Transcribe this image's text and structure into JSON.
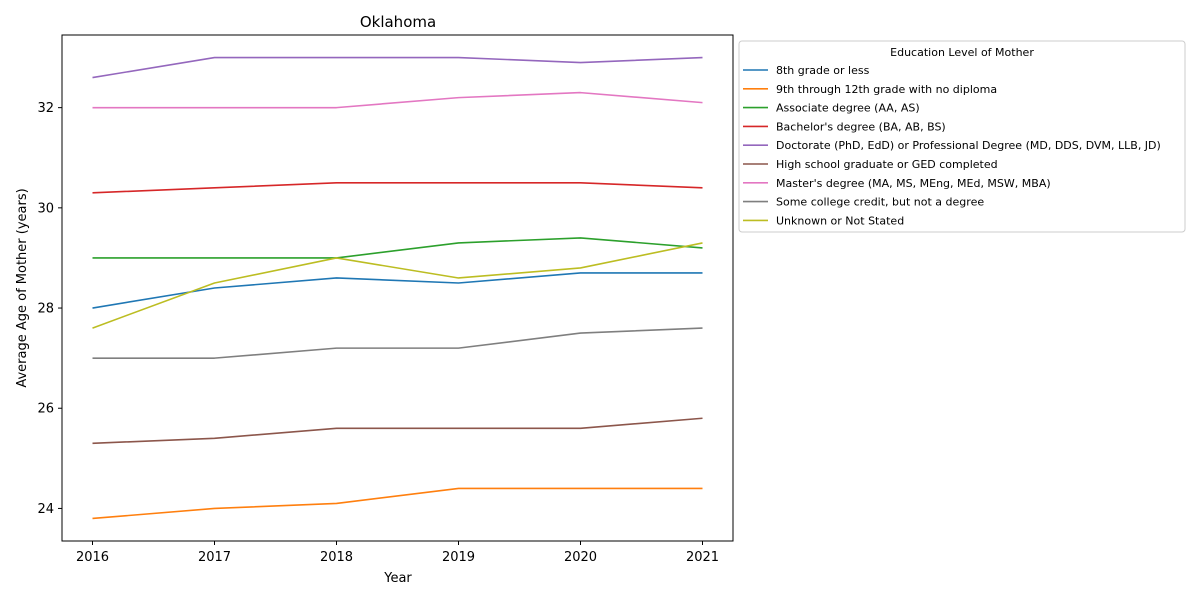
{
  "chart_data": {
    "type": "line",
    "title": "Oklahoma",
    "xlabel": "Year",
    "ylabel": "Average Age of Mother (years)",
    "x": [
      2016,
      2017,
      2018,
      2019,
      2020,
      2021
    ],
    "xticks": [
      "2016",
      "2017",
      "2018",
      "2019",
      "2020",
      "2021"
    ],
    "yticks": [
      "24",
      "26",
      "28",
      "30",
      "32"
    ],
    "ylim": [
      23.35,
      33.45
    ],
    "grid": false,
    "legend": {
      "title": "Education Level of Mother",
      "placement": "outside-right-top"
    },
    "series": [
      {
        "name": "8th grade or less",
        "color": "#1f77b4",
        "values": [
          28.0,
          28.4,
          28.6,
          28.5,
          28.7,
          28.7
        ]
      },
      {
        "name": "9th through 12th grade with no diploma",
        "color": "#ff7f0e",
        "values": [
          23.8,
          24.0,
          24.1,
          24.4,
          24.4,
          24.4
        ]
      },
      {
        "name": "Associate degree (AA, AS)",
        "color": "#2ca02c",
        "values": [
          29.0,
          29.0,
          29.0,
          29.3,
          29.4,
          29.2
        ]
      },
      {
        "name": "Bachelor's degree (BA, AB, BS)",
        "color": "#d62728",
        "values": [
          30.3,
          30.4,
          30.5,
          30.5,
          30.5,
          30.4
        ]
      },
      {
        "name": "Doctorate (PhD, EdD) or Professional Degree (MD, DDS, DVM, LLB, JD)",
        "color": "#9467bd",
        "values": [
          32.6,
          33.0,
          33.0,
          33.0,
          32.9,
          33.0
        ]
      },
      {
        "name": "High school graduate or GED completed",
        "color": "#8c564b",
        "values": [
          25.3,
          25.4,
          25.6,
          25.6,
          25.6,
          25.8
        ]
      },
      {
        "name": "Master's degree (MA, MS, MEng, MEd, MSW, MBA)",
        "color": "#e377c2",
        "values": [
          32.0,
          32.0,
          32.0,
          32.2,
          32.3,
          32.1
        ]
      },
      {
        "name": "Some college credit, but not a degree",
        "color": "#7f7f7f",
        "values": [
          27.0,
          27.0,
          27.2,
          27.2,
          27.5,
          27.6
        ]
      },
      {
        "name": "Unknown or Not Stated",
        "color": "#bcbd22",
        "values": [
          27.6,
          28.5,
          29.0,
          28.6,
          28.8,
          29.3
        ]
      }
    ]
  }
}
